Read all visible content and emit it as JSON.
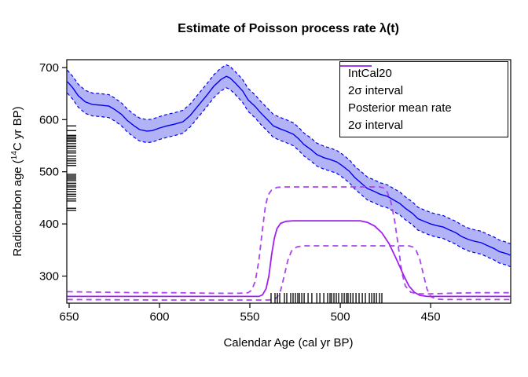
{
  "title": "Estimate of Poisson process rate λ(t)",
  "x_axis": {
    "label": "Calendar Age (cal yr BP)",
    "ticks": [
      650,
      600,
      550,
      500,
      450
    ],
    "domain": [
      651.3,
      405.7
    ],
    "reversed": true
  },
  "y_axis": {
    "label_prefix": "Radiocarbon age (",
    "label_sup": "14",
    "label_suffix": "C yr BP)",
    "ticks": [
      300,
      400,
      500,
      600,
      700
    ],
    "domain": [
      248,
      715
    ]
  },
  "colors": {
    "blue_line": "#0000EE",
    "band_fill": "#B2B2F7",
    "purple_solid": "#A020F0",
    "purple_dashed": "#A845F0",
    "rug": "#000000",
    "axis": "#000000"
  },
  "legend": {
    "items": [
      {
        "label": "IntCal20",
        "color": "#0000EE",
        "style": "solid"
      },
      {
        "label": "2σ interval",
        "color": "#0000EE",
        "style": "dashed"
      },
      {
        "label": "Posterior mean rate",
        "color": "#A020F0",
        "style": "solid"
      },
      {
        "label": "2σ interval",
        "color": "#A845F0",
        "style": "dashed"
      }
    ]
  },
  "chart_data": {
    "type": "line",
    "title": "Estimate of Poisson process rate λ(t)",
    "xlabel": "Calendar Age (cal yr BP)",
    "ylabel": "Radiocarbon age (14C yr BP)",
    "xlim": [
      651.3,
      405.7
    ],
    "ylim": [
      248,
      715
    ],
    "grid": false,
    "legend_position": "topright",
    "intcal20_mean": [
      [
        651,
        673
      ],
      [
        648,
        661
      ],
      [
        645,
        646
      ],
      [
        641,
        634
      ],
      [
        637,
        629
      ],
      [
        633,
        628
      ],
      [
        628,
        626
      ],
      [
        625,
        620
      ],
      [
        621,
        610
      ],
      [
        618,
        599
      ],
      [
        614,
        588
      ],
      [
        611,
        581
      ],
      [
        607,
        578
      ],
      [
        604,
        579
      ],
      [
        600,
        584
      ],
      [
        596,
        588
      ],
      [
        592,
        591
      ],
      [
        587,
        596
      ],
      [
        583,
        608
      ],
      [
        579,
        625
      ],
      [
        574,
        646
      ],
      [
        570,
        664
      ],
      [
        566,
        677
      ],
      [
        563,
        683
      ],
      [
        561,
        680
      ],
      [
        558,
        670
      ],
      [
        554,
        655
      ],
      [
        551,
        638
      ],
      [
        547,
        625
      ],
      [
        544,
        613
      ],
      [
        540,
        599
      ],
      [
        537,
        588
      ],
      [
        533,
        582
      ],
      [
        530,
        578
      ],
      [
        526,
        572
      ],
      [
        523,
        563
      ],
      [
        520,
        552
      ],
      [
        516,
        542
      ],
      [
        513,
        533
      ],
      [
        509,
        527
      ],
      [
        506,
        524
      ],
      [
        502,
        519
      ],
      [
        499,
        512
      ],
      [
        495,
        501
      ],
      [
        492,
        489
      ],
      [
        488,
        477
      ],
      [
        485,
        468
      ],
      [
        481,
        462
      ],
      [
        478,
        457
      ],
      [
        474,
        453
      ],
      [
        471,
        447
      ],
      [
        467,
        439
      ],
      [
        464,
        430
      ],
      [
        460,
        420
      ],
      [
        457,
        410
      ],
      [
        453,
        404
      ],
      [
        450,
        400
      ],
      [
        447,
        397
      ],
      [
        443,
        394
      ],
      [
        440,
        389
      ],
      [
        436,
        383
      ],
      [
        433,
        376
      ],
      [
        429,
        370
      ],
      [
        426,
        367
      ],
      [
        422,
        364
      ],
      [
        419,
        359
      ],
      [
        415,
        353
      ],
      [
        412,
        347
      ],
      [
        408,
        343
      ],
      [
        406,
        340
      ]
    ],
    "intcal20_2sigma_halfwidth": 22,
    "rate_units": "posterior rate curves drawn on an unlabelled rate scale; coordinates below give their drawn position in left-axis units",
    "posterior_mean_rate": [
      [
        651,
        261
      ],
      [
        580,
        261
      ],
      [
        549,
        261
      ],
      [
        545,
        261
      ],
      [
        543,
        264
      ],
      [
        541,
        276
      ],
      [
        539.5,
        300
      ],
      [
        538,
        340
      ],
      [
        536.5,
        372
      ],
      [
        535,
        391
      ],
      [
        533,
        401
      ],
      [
        530,
        405
      ],
      [
        526,
        406
      ],
      [
        510,
        406
      ],
      [
        489,
        406
      ],
      [
        485,
        403
      ],
      [
        481,
        396
      ],
      [
        477,
        383
      ],
      [
        473,
        362
      ],
      [
        469,
        333
      ],
      [
        465,
        302
      ],
      [
        462,
        281
      ],
      [
        459,
        269
      ],
      [
        456,
        263
      ],
      [
        452,
        261
      ],
      [
        440,
        261
      ],
      [
        406,
        261
      ]
    ],
    "rate_upper_2sigma": [
      [
        651,
        270
      ],
      [
        630,
        269
      ],
      [
        610,
        268
      ],
      [
        590,
        268
      ],
      [
        570,
        267
      ],
      [
        556,
        267
      ],
      [
        551,
        268
      ],
      [
        549,
        273
      ],
      [
        547,
        290
      ],
      [
        545,
        330
      ],
      [
        543,
        390
      ],
      [
        541.5,
        432
      ],
      [
        540,
        455
      ],
      [
        538,
        465
      ],
      [
        535,
        470
      ],
      [
        531,
        471
      ],
      [
        510,
        471
      ],
      [
        478,
        471
      ],
      [
        476,
        469
      ],
      [
        474,
        461
      ],
      [
        472,
        442
      ],
      [
        470,
        408
      ],
      [
        468,
        360
      ],
      [
        466,
        308
      ],
      [
        464,
        281
      ],
      [
        461,
        269
      ],
      [
        457,
        266
      ],
      [
        450,
        266
      ],
      [
        440,
        267
      ],
      [
        425,
        268
      ],
      [
        415,
        268
      ],
      [
        406,
        268
      ]
    ],
    "rate_lower_2sigma": [
      [
        651,
        255
      ],
      [
        600,
        254
      ],
      [
        560,
        254
      ],
      [
        540,
        254
      ],
      [
        537,
        255
      ],
      [
        535,
        259
      ],
      [
        533,
        272
      ],
      [
        531,
        300
      ],
      [
        529,
        330
      ],
      [
        527,
        348
      ],
      [
        524,
        356
      ],
      [
        520,
        358
      ],
      [
        500,
        358
      ],
      [
        462,
        358
      ],
      [
        460,
        356
      ],
      [
        458,
        349
      ],
      [
        456,
        332
      ],
      [
        454,
        303
      ],
      [
        452,
        275
      ],
      [
        450,
        261
      ],
      [
        447,
        256
      ],
      [
        443,
        255
      ],
      [
        420,
        255
      ],
      [
        406,
        255
      ]
    ],
    "rug_calendar_ages": [
      538.3,
      536.1,
      534.8,
      533.5,
      530.9,
      529.6,
      527.4,
      526.1,
      524.8,
      523.5,
      522.6,
      521.3,
      520.0,
      517.8,
      515.7,
      513.0,
      511.3,
      509.1,
      507.0,
      505.7,
      504.8,
      503.5,
      502.2,
      500.9,
      499.1,
      497.8,
      496.5,
      495.7,
      494.3,
      493.0,
      491.3,
      489.6,
      487.8,
      486.1,
      483.9,
      482.6,
      481.3,
      480.0,
      478.3,
      477.0
    ],
    "rug_radiocarbon_ages": [
      588,
      579,
      570,
      567,
      564,
      561,
      558,
      554,
      549,
      545,
      540,
      536,
      530,
      525,
      521,
      516,
      512,
      495,
      492,
      489,
      486,
      483,
      478,
      474,
      471,
      466,
      462,
      457,
      453,
      448,
      444,
      430,
      426
    ]
  }
}
